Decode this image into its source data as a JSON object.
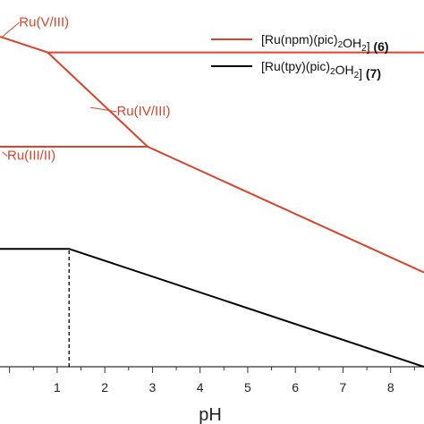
{
  "chart_data": {
    "type": "line",
    "title": "",
    "xlabel": "pH",
    "ylabel": "",
    "xlim": [
      -0.2,
      8.7
    ],
    "ylim": [
      0,
      1.4
    ],
    "xticks": [
      1,
      2,
      3,
      4,
      5,
      6,
      7,
      8
    ],
    "grid": false,
    "legend_position": "top-right",
    "colors": {
      "red": "#d9432c",
      "black": "#000000"
    },
    "series": [
      {
        "name": "[Ru(npm)(pic)₂OH₂] (6)",
        "legend_prefix": "[Ru(npm)(pic)",
        "legend_sub1": "2",
        "legend_mid": "OH",
        "legend_sub2": "2",
        "legend_suffix": "]",
        "legend_num": "(6)",
        "color": "red",
        "lines": [
          {
            "label": "Ru(V/III)",
            "x": [
              -0.2,
              0.8,
              8.7
            ],
            "y": [
              1.26,
              1.2,
              1.2
            ]
          },
          {
            "label": "Ru(IV/III)",
            "x": [
              0.8,
              2.9
            ],
            "y": [
              1.2,
              0.84
            ]
          },
          {
            "label": "Ru(III/II)",
            "x": [
              -0.2,
              2.9,
              8.7
            ],
            "y": [
              0.84,
              0.84,
              0.36
            ]
          }
        ]
      },
      {
        "name": "[Ru(tpy)(pic)₂OH₂] (7)",
        "legend_prefix": "[Ru(tpy)(pic)",
        "legend_sub1": "2",
        "legend_mid": "OH",
        "legend_sub2": "2",
        "legend_suffix": "]",
        "legend_num": "(7)",
        "color": "black",
        "lines": [
          {
            "x": [
              -0.2,
              1.25,
              8.7
            ],
            "y": [
              0.45,
              0.45,
              0.0
            ]
          }
        ],
        "vline": {
          "x": 1.25,
          "y": [
            0.0,
            0.45
          ],
          "style": "dashed"
        }
      }
    ],
    "annotations": [
      {
        "text": "Ru(V/III)",
        "color": "red",
        "ax": 0.2,
        "ay": 1.3,
        "tx": -0.15,
        "ty": 1.26
      },
      {
        "text": "Ru(IV/III)",
        "color": "red",
        "ax": 2.25,
        "ay": 0.96,
        "tx": 1.7,
        "ty": 0.99
      },
      {
        "text": "Ru(III/II)",
        "color": "red",
        "ax": -0.05,
        "ay": 0.79,
        "tx": -0.15,
        "ty": 0.82
      }
    ]
  }
}
